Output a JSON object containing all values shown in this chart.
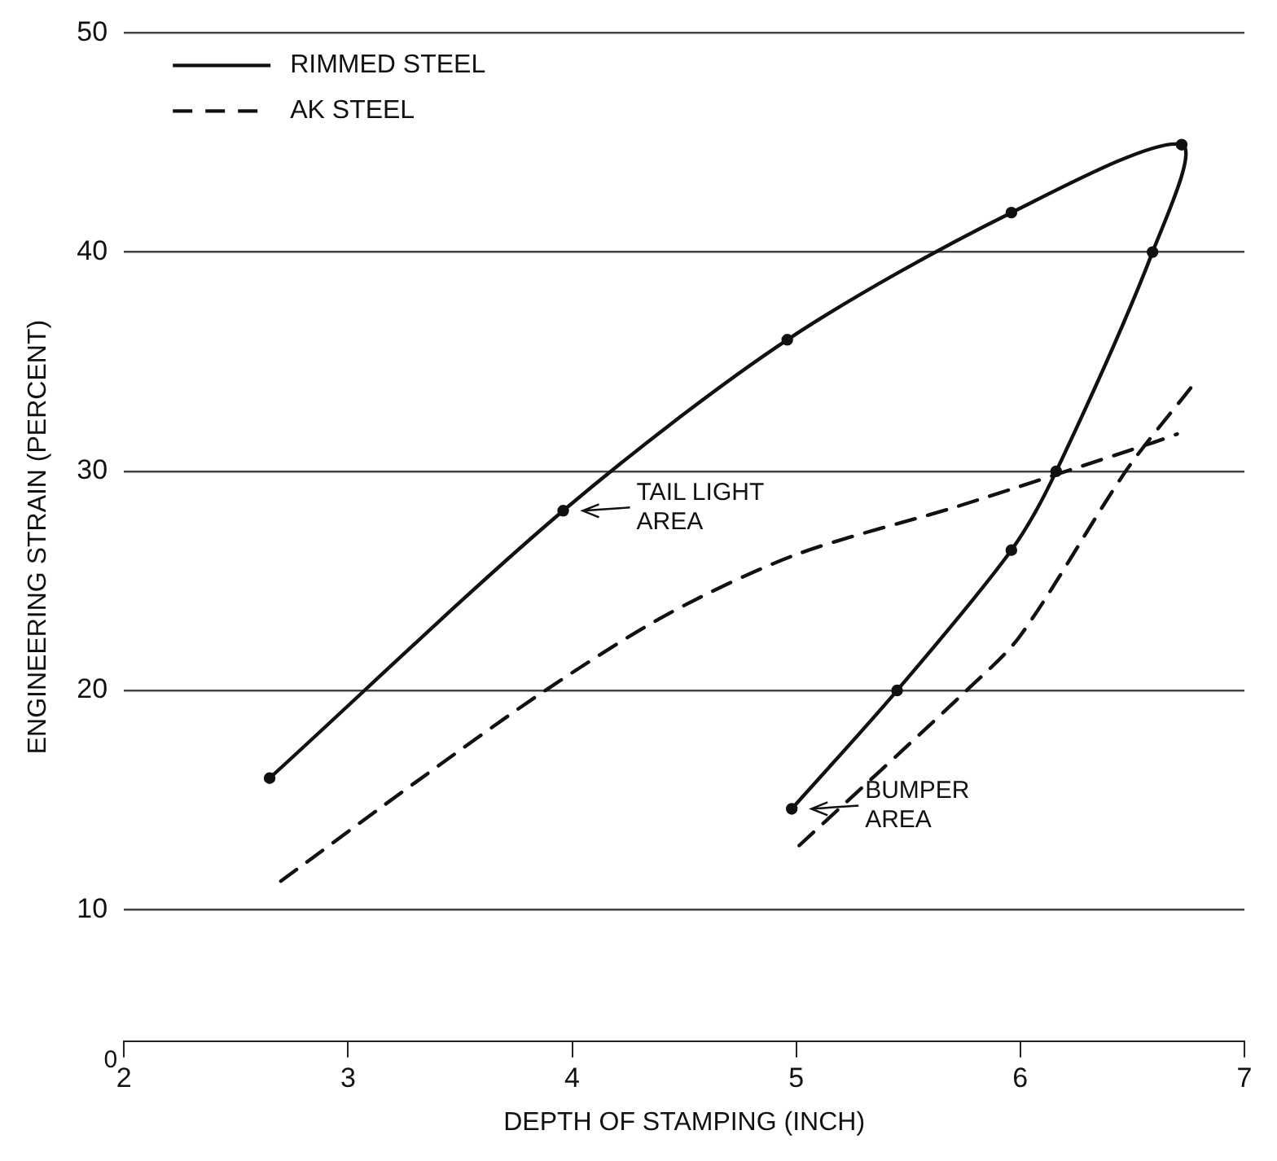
{
  "chart_data": {
    "type": "line",
    "xlabel": "DEPTH OF STAMPING (INCH)",
    "ylabel": "ENGINEERING STRAIN (PERCENT)",
    "xlim": [
      2,
      7
    ],
    "xticks": [
      2,
      3,
      4,
      5,
      6,
      7
    ],
    "ylim": [
      4,
      50
    ],
    "yticks": [
      10,
      20,
      30,
      40,
      50
    ],
    "grid": "y",
    "legend": "top left",
    "series": [
      {
        "name": "RIMMED STEEL",
        "color": "#111111",
        "line_style": "solid",
        "marker": "circle",
        "x": [
          2.65,
          3.96,
          4.96,
          5.96,
          6.72,
          6.59,
          6.16,
          5.96,
          5.45,
          4.98
        ],
        "values": [
          16.0,
          28.2,
          36.0,
          41.8,
          44.9,
          40.0,
          30.0,
          26.4,
          20.0,
          14.6
        ]
      },
      {
        "name": "AK STEEL",
        "color": "#111111",
        "line_style": "dashed",
        "marker": "none",
        "x": [
          2.7,
          3.3,
          3.88,
          4.43,
          5.0,
          5.72,
          6.59,
          6.7
        ],
        "values": [
          11.3,
          15.8,
          20.0,
          23.5,
          26.2,
          28.4,
          31.3,
          31.7
        ]
      },
      {
        "color": "#111111",
        "line_style": "dashed",
        "marker": "none",
        "x": [
          6.76,
          6.47,
          6.0,
          5.76,
          5.0
        ],
        "values": [
          33.8,
          30.0,
          22.5,
          20.0,
          12.8
        ]
      }
    ],
    "annotations": [
      {
        "text": "TAIL LIGHT\nAREA",
        "x": 3.96,
        "y": 28.2
      },
      {
        "text": "BUMPER\nAREA",
        "x": 4.98,
        "y": 14.6
      },
      "0"
    ]
  }
}
